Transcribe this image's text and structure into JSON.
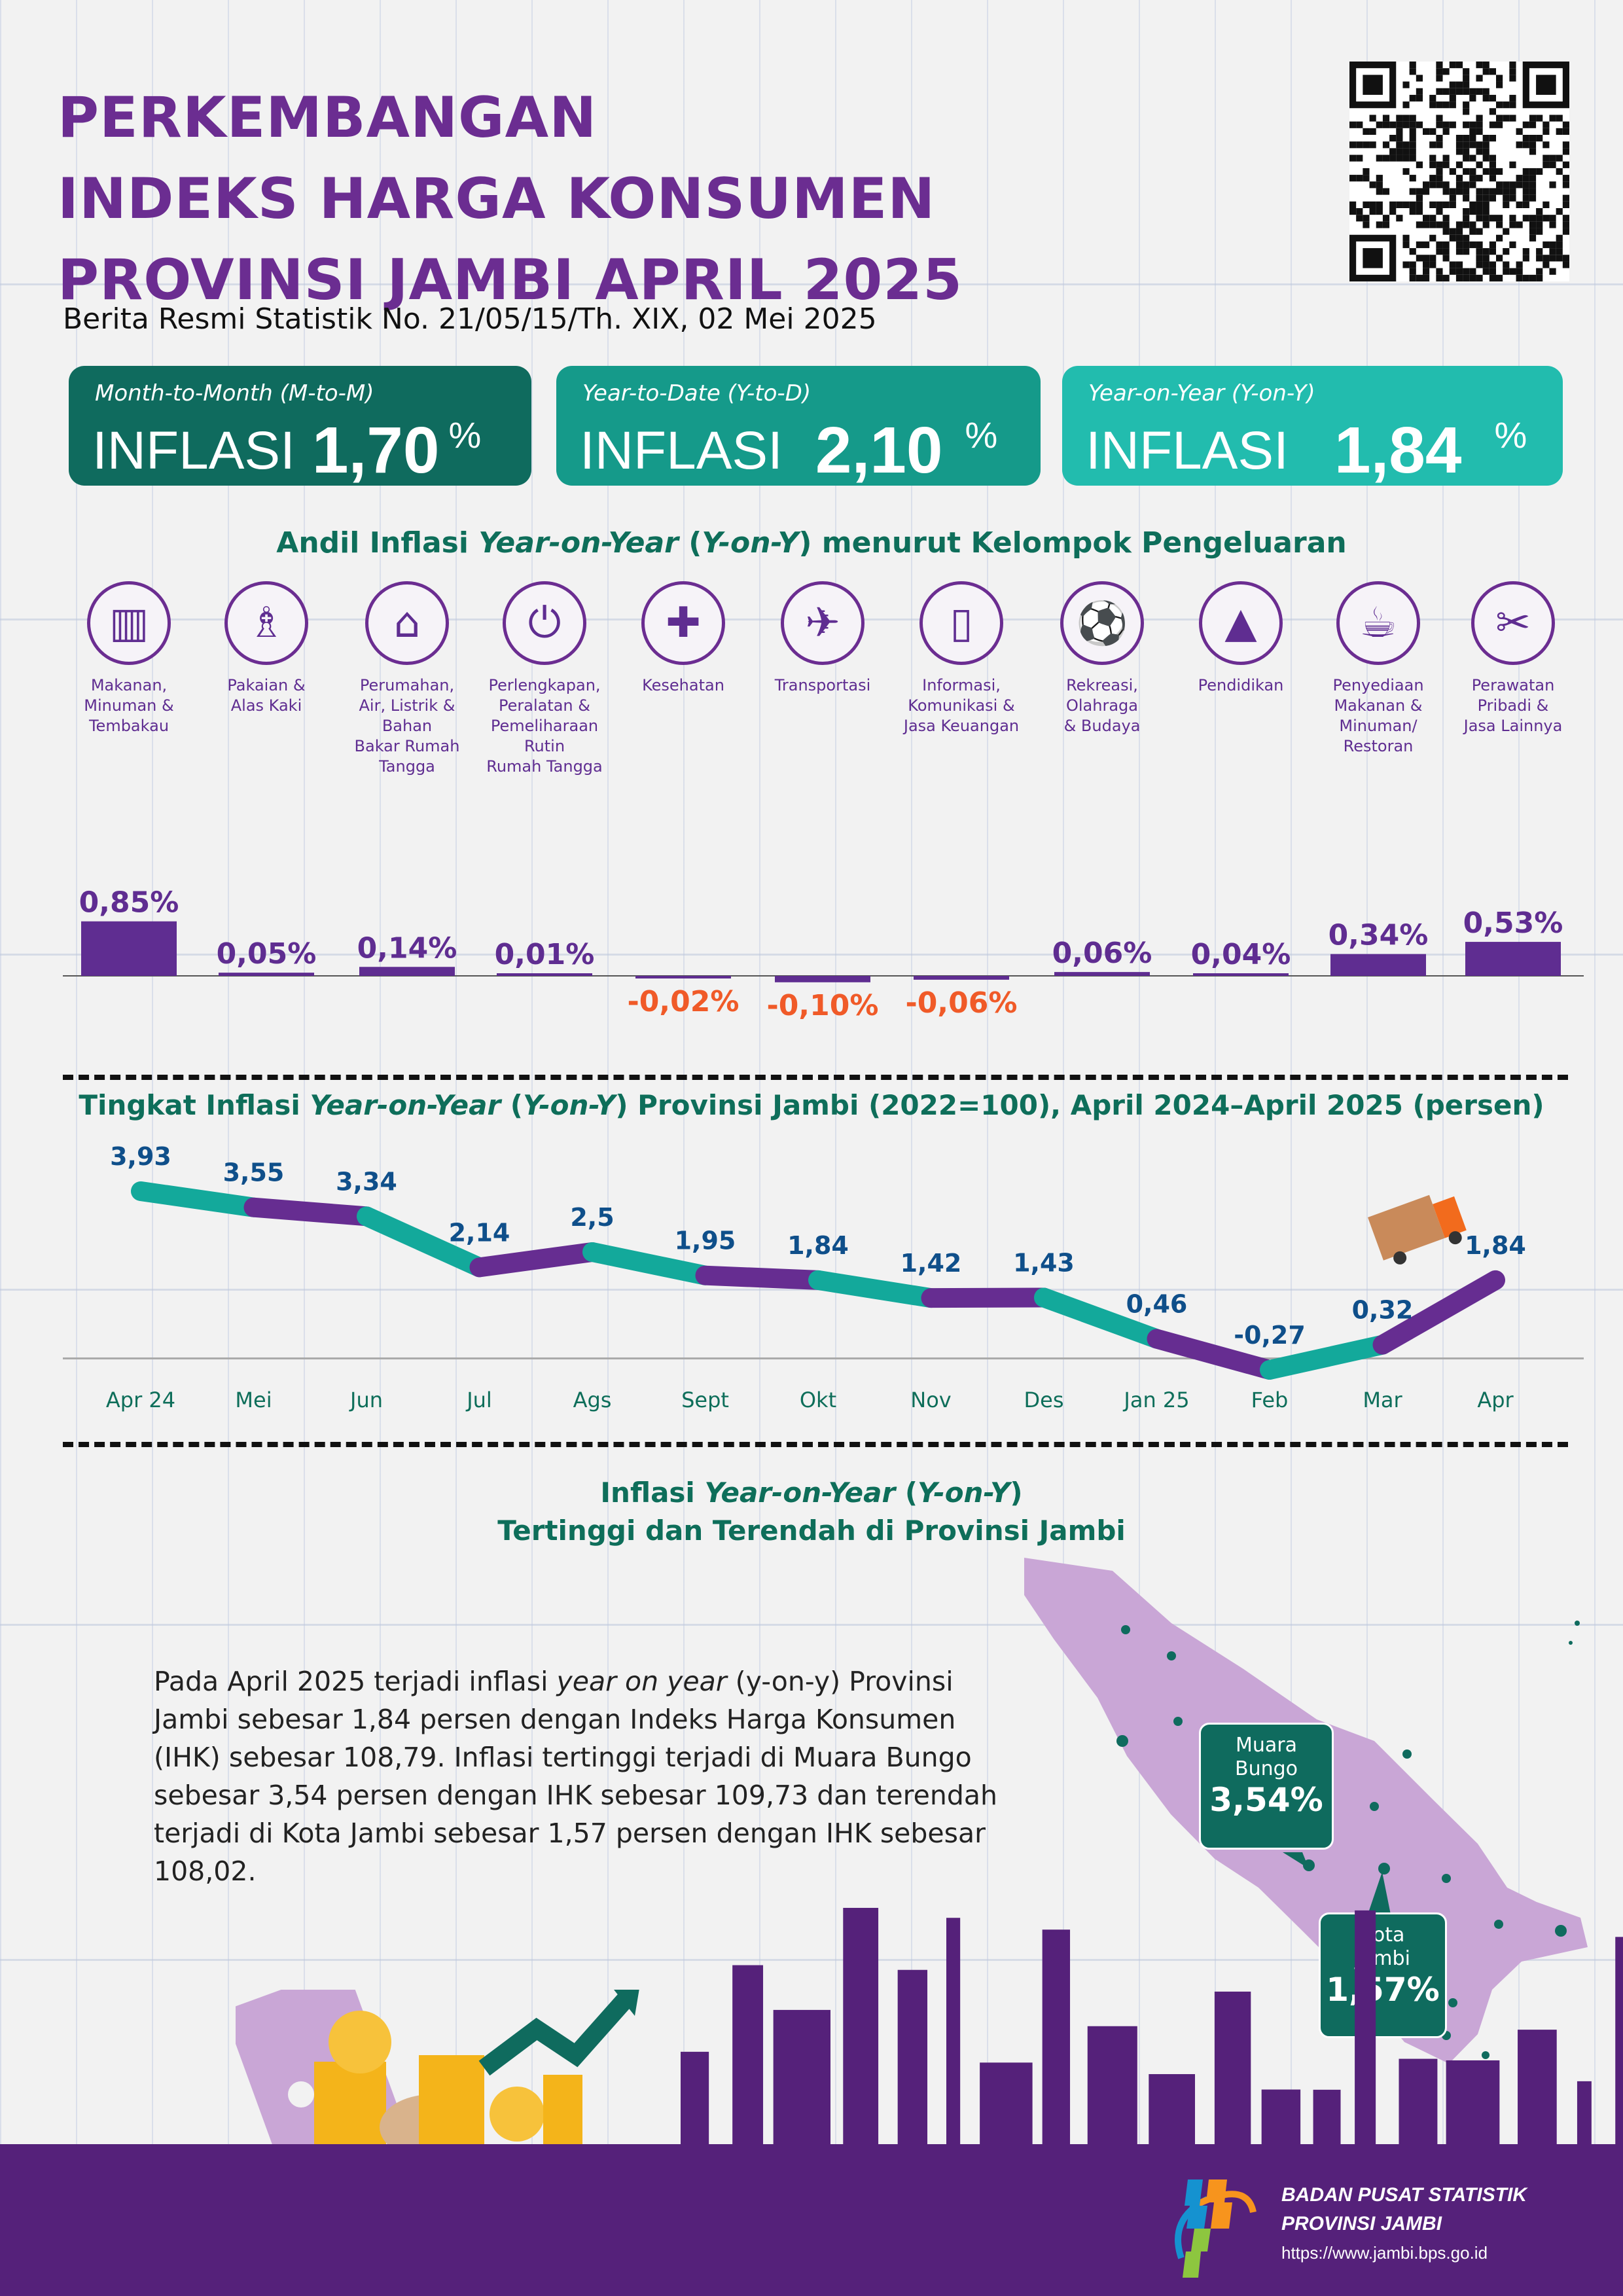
{
  "header": {
    "title_lines": [
      "PERKEMBANGAN",
      "INDEKS HARGA KONSUMEN",
      "PROVINSI JAMBI APRIL 2025"
    ],
    "subtitle": "Berita Resmi Statistik No. 21/05/15/Th. XIX, 02 Mei 2025",
    "qr_icon": "qr-code"
  },
  "stats": [
    {
      "period": "Month-to-Month (M-to-M)",
      "label": "INFLASI",
      "value": "1,70",
      "unit": "%",
      "color": "#0f6b5e"
    },
    {
      "period": "Year-to-Date (Y-to-D)",
      "label": "INFLASI",
      "value": "2,10",
      "unit": "%",
      "color": "#159a8a"
    },
    {
      "period": "Year-on-Year (Y-on-Y)",
      "label": "INFLASI",
      "value": "1,84",
      "unit": "%",
      "color": "#22bcae"
    }
  ],
  "bar_section": {
    "title_a": "Andil Inflasi ",
    "title_b": "Year-on-Year",
    "title_c": " (",
    "title_d": "Y-on-Y",
    "title_e": ") menurut Kelompok Pengeluaran",
    "categories": [
      {
        "label": "Makanan,\nMinuman &\nTembakau",
        "icon": "grocery-bag"
      },
      {
        "label": "Pakaian &\nAlas Kaki",
        "icon": "dress"
      },
      {
        "label": "Perumahan,\nAir, Listrik &\nBahan\nBakar Rumah\nTangga",
        "icon": "house"
      },
      {
        "label": "Perlengkapan,\nPeralatan &\nPemeliharaan\nRutin\nRumah Tangga",
        "icon": "plug"
      },
      {
        "label": "Kesehatan",
        "icon": "first-aid-kit"
      },
      {
        "label": "Transportasi",
        "icon": "airplane"
      },
      {
        "label": "Informasi,\nKomunikasi &\nJasa Keuangan",
        "icon": "smartphone"
      },
      {
        "label": "Rekreasi,\nOlahraga\n& Budaya",
        "icon": "soccer-player"
      },
      {
        "label": "Pendidikan",
        "icon": "graduation-cap"
      },
      {
        "label": "Penyediaan\nMakanan &\nMinuman/\nRestoran",
        "icon": "burger-drink"
      },
      {
        "label": "Perawatan\nPribadi &\nJasa Lainnya",
        "icon": "scissors-comb"
      }
    ]
  },
  "line_section": {
    "title_a": "Tingkat Inflasi ",
    "title_b": "Year-on-Year",
    "title_c": " (",
    "title_d": "Y-on-Y",
    "title_e": ") Provinsi Jambi (2022=100), April 2024–April 2025 (persen)"
  },
  "chart_data": [
    {
      "type": "bar",
      "categories": [
        "Makanan, Minuman & Tembakau",
        "Pakaian & Alas Kaki",
        "Perumahan, Air, Listrik & Bahan Bakar Rumah Tangga",
        "Perlengkapan, Peralatan & Pemeliharaan Rutin Rumah Tangga",
        "Kesehatan",
        "Transportasi",
        "Informasi, Komunikasi & Jasa Keuangan",
        "Rekreasi, Olahraga & Budaya",
        "Pendidikan",
        "Penyediaan Makanan & Minuman/Restoran",
        "Perawatan Pribadi & Jasa Lainnya"
      ],
      "values": [
        0.85,
        0.05,
        0.14,
        0.01,
        -0.02,
        -0.1,
        -0.06,
        0.06,
        0.04,
        0.34,
        0.53
      ],
      "labels": [
        "0,85%",
        "0,05%",
        "0,14%",
        "0,01%",
        "-0,02%",
        "-0,10%",
        "-0,06%",
        "0,06%",
        "0,04%",
        "0,34%",
        "0,53%"
      ],
      "unit": "%",
      "colors": {
        "bar": "#5f2d91",
        "positive_label": "#5f2d91",
        "negative_label": "#f05a28"
      }
    },
    {
      "type": "line",
      "x": [
        "Apr 24",
        "Mei",
        "Jun",
        "Jul",
        "Ags",
        "Sept",
        "Okt",
        "Nov",
        "Des",
        "Jan 25",
        "Feb",
        "Mar",
        "Apr"
      ],
      "values": [
        3.93,
        3.55,
        3.34,
        2.14,
        2.5,
        1.95,
        1.84,
        1.42,
        1.43,
        0.46,
        -0.27,
        0.32,
        1.84
      ],
      "labels": [
        "3,93",
        "3,55",
        "3,34",
        "2,14",
        "2,5",
        "1,95",
        "1,84",
        "1,42",
        "1,43",
        "0,46",
        "-0,27",
        "0,32",
        "1,84"
      ],
      "colors": {
        "segment_a": "#13a99b",
        "segment_b": "#662d91",
        "label": "#0f4f8a",
        "x_label": "#0e6e5a"
      }
    }
  ],
  "map_section": {
    "title1_a": "Inflasi ",
    "title1_b": "Year-on-Year",
    "title1_c": " (",
    "title1_d": "Y-on-Y",
    "title1_e": ")",
    "title2": "Tertinggi dan Terendah di Provinsi Jambi",
    "para_a": "Pada April 2025 terjadi inflasi ",
    "para_b": "year on year",
    "para_c": " (y-on-y) Provinsi Jambi sebesar 1,84 persen dengan Indeks Harga Konsumen (IHK) sebesar 108,79. Inflasi tertinggi terjadi di Muara Bungo sebesar 3,54 persen dengan IHK sebesar 109,73 dan terendah terjadi di Kota Jambi sebesar 1,57 persen dengan IHK sebesar 108,02.",
    "callouts": [
      {
        "name": "Muara\nBungo",
        "value": "3,54%"
      },
      {
        "name": "Kota\nJambi",
        "value": "1,57%"
      }
    ],
    "map_color": "#c9a6d6"
  },
  "footer": {
    "org_line1": "BADAN PUSAT STATISTIK",
    "org_line2": "PROVINSI JAMBI",
    "url": "https://www.jambi.bps.go.id",
    "color": "#55217a"
  }
}
